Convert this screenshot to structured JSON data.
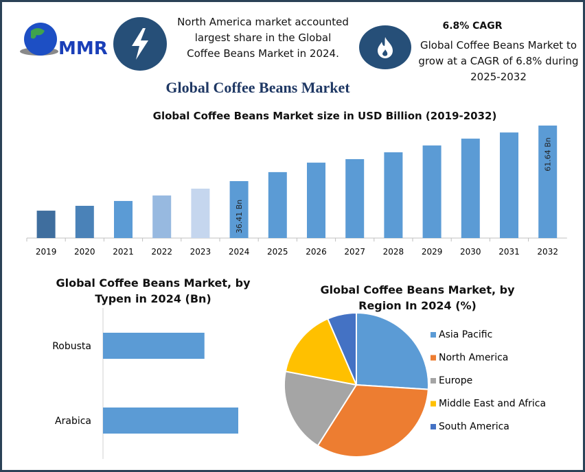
{
  "header": {
    "logo_text": "MMR",
    "bolt_icon": "lightning-bolt-icon",
    "flame_icon": "flame-icon",
    "north_america_note": "North America market accounted largest share in the Global Coffee Beans Market in 2024.",
    "cagr_title": "6.8% CAGR",
    "cagr_note": "Global Coffee Beans Market to grow at a CAGR of 6.8% during 2025-2032",
    "main_title": "Global Coffee Beans Market"
  },
  "colors": {
    "frame": "#2b4257",
    "icon_bg": "#264f78",
    "bar": "#5b9bd5",
    "title": "#1f3864"
  },
  "chart_data": [
    {
      "type": "bar",
      "title": "Global Coffee Beans Market size in USD Billion (2019-2032)",
      "categories": [
        "2019",
        "2020",
        "2021",
        "2022",
        "2023",
        "2024",
        "2025",
        "2026",
        "2027",
        "2028",
        "2029",
        "2030",
        "2031",
        "2032"
      ],
      "values": [
        23.0,
        25.2,
        27.4,
        29.9,
        33.0,
        36.41,
        40.5,
        44.8,
        46.4,
        49.5,
        52.6,
        55.7,
        58.5,
        61.64
      ],
      "bar_colors": [
        "#3f6e9e",
        "#4a82b8",
        "#5b9bd5",
        "#97b9e0",
        "#c5d6ee",
        "#5b9bd5",
        "#5b9bd5",
        "#5b9bd5",
        "#5b9bd5",
        "#5b9bd5",
        "#5b9bd5",
        "#5b9bd5",
        "#5b9bd5",
        "#5b9bd5"
      ],
      "data_labels": {
        "2024": "36.41 Bn",
        "2032": "61.64 Bn"
      },
      "grid": false
    },
    {
      "type": "bar",
      "orientation": "horizontal",
      "title": "Global Coffee Beans Market, by Typen in 2024 (Bn)",
      "categories": [
        "Robusta",
        "Arabica"
      ],
      "values": [
        15.6,
        20.8
      ],
      "color": "#5b9bd5",
      "grid": false
    },
    {
      "type": "pie",
      "title": "Global Coffee Beans Market, by Region In 2024 (%)",
      "categories": [
        "Asia Pacific",
        "North America",
        "Europe",
        "Middle East and Africa",
        "South America"
      ],
      "values": [
        26,
        33,
        19,
        15.5,
        6.5
      ],
      "colors": [
        "#5b9bd5",
        "#ed7d31",
        "#a5a5a5",
        "#ffc000",
        "#4472c4"
      ],
      "legend": "right"
    }
  ]
}
